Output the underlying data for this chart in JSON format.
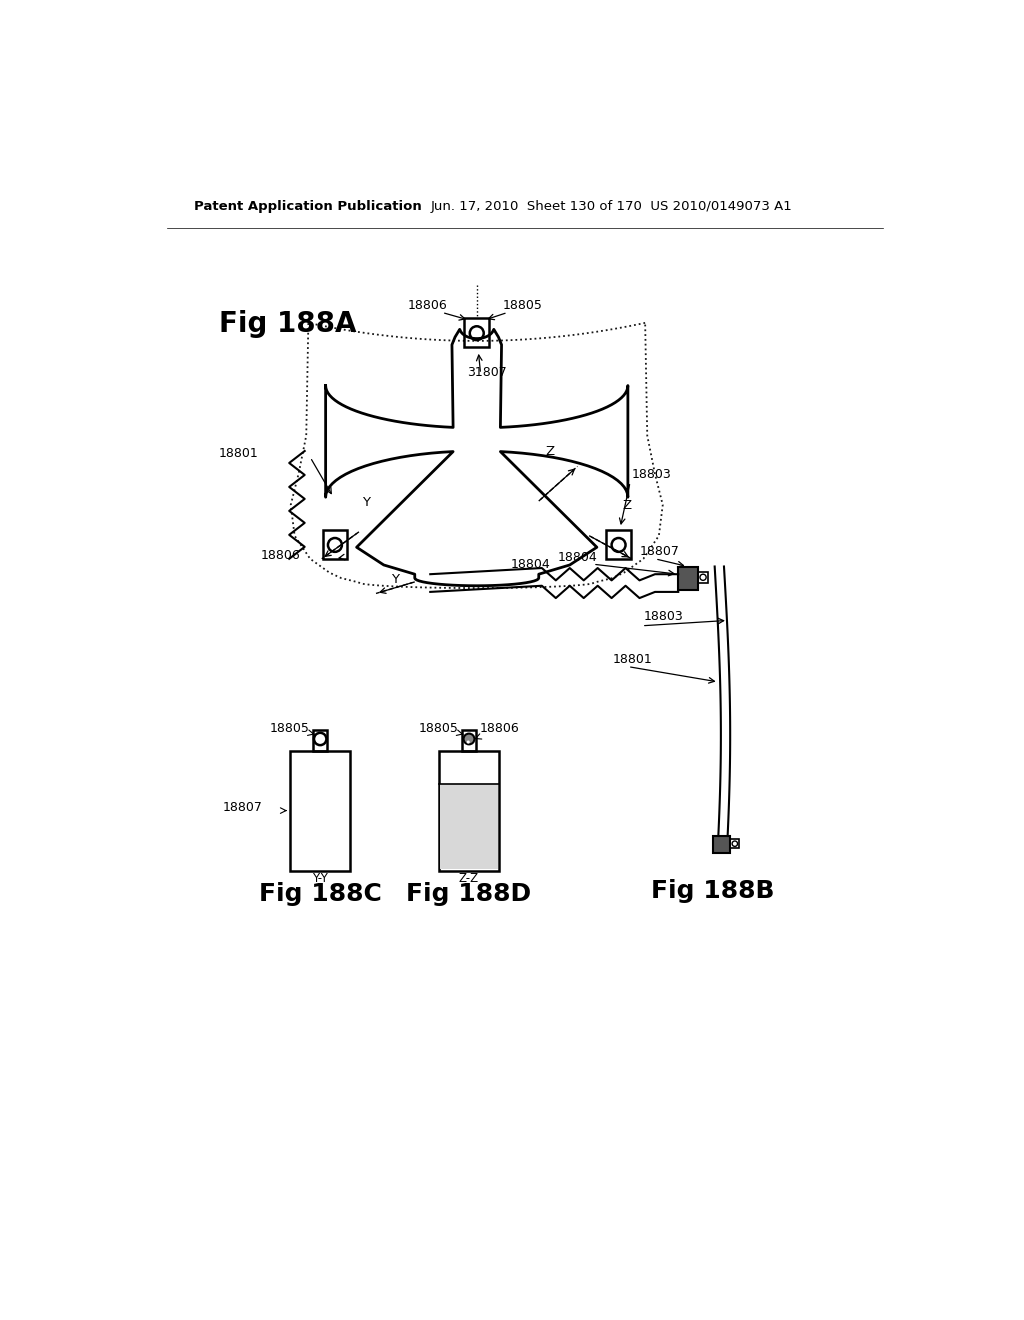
{
  "bg_color": "#ffffff",
  "header_text": "Patent Application Publication",
  "header_date": "Jun. 17, 2010  Sheet 130 of 170  US 2010/0149073 A1",
  "fig_188A_label": "Fig 188A",
  "fig_188B_label": "Fig 188B",
  "fig_188C_label": "Fig 188C",
  "fig_188D_label": "Fig 188D",
  "line_color": "#000000",
  "text_color": "#000000"
}
